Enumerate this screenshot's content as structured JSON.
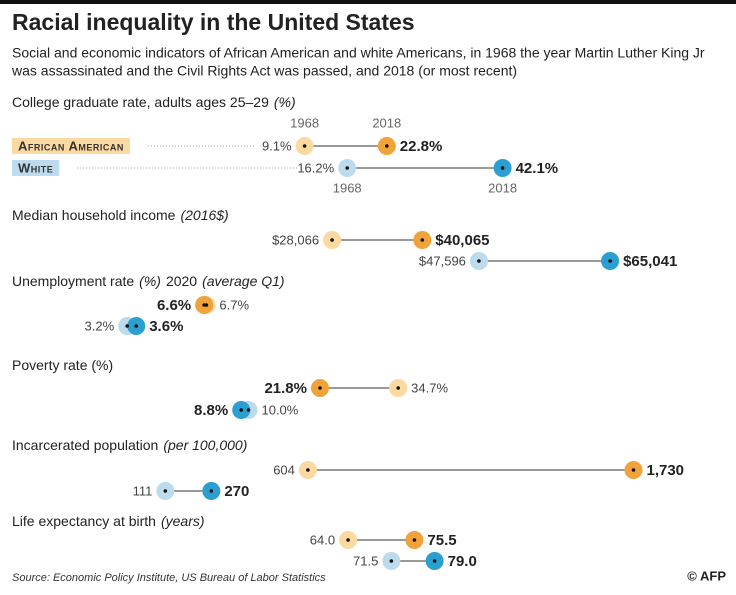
{
  "title": "Racial inequality in the United States",
  "subtitle": [
    "Social and economic indicators of African American and white Americans, in 1968 the year Martin Luther King Jr",
    "was assassinated and the Civil Rights Act was passed, and 2018 (or most recent)"
  ],
  "source": "Source: Economic Policy Institute, US Bureau of Labor Statistics",
  "credit": "© AFP",
  "chart_data": [
    {
      "type": "dumbbell",
      "title_parts": [
        {
          "text": "College graduate rate, adults ages 25–29"
        },
        {
          "text": "(%)",
          "italic": true
        }
      ],
      "categories": [
        "1968",
        "2018"
      ],
      "xlim": [
        -25,
        75
      ],
      "series": [
        {
          "name": "African American",
          "color": "#f0a33a",
          "light_color": "#fcd9a0",
          "values": [
            9.1,
            22.8
          ],
          "value_labels": [
            "9.1%",
            "22.8%"
          ]
        },
        {
          "name": "White",
          "color": "#2a9fd0",
          "light_color": "#bcdcee",
          "values": [
            16.2,
            42.1
          ],
          "value_labels": [
            "16.2%",
            "42.1%"
          ]
        }
      ]
    },
    {
      "type": "dumbbell",
      "title_parts": [
        {
          "text": "Median household income"
        },
        {
          "text": "(2016$)",
          "italic": true
        }
      ],
      "xlim": [
        -2800,
        77000
      ],
      "series": [
        {
          "color": "#f0a33a",
          "light_color": "#fcd9a0",
          "values": [
            28066,
            40065
          ],
          "value_labels": [
            "$28,066",
            "$40,065"
          ]
        },
        {
          "color": "#2a9fd0",
          "light_color": "#bcdcee",
          "values": [
            47596,
            65041
          ],
          "value_labels": [
            "$47,596",
            "$65,041"
          ]
        }
      ]
    },
    {
      "type": "dumbbell",
      "title_parts": [
        {
          "text": "Unemployment rate"
        },
        {
          "text": "(%)",
          "italic": true
        },
        {
          "text": "2020"
        },
        {
          "text": "(average Q1)",
          "italic": true
        }
      ],
      "xlim": [
        2,
        28.5
      ],
      "series": [
        {
          "color": "#f0a33a",
          "light_color": "#fcd9a0",
          "values": [
            6.7,
            6.6
          ],
          "value_labels": [
            "6.7%",
            "6.6%"
          ]
        },
        {
          "color": "#2a9fd0",
          "light_color": "#bcdcee",
          "values": [
            3.2,
            3.6
          ],
          "value_labels": [
            "3.2%",
            "3.6%"
          ]
        }
      ]
    },
    {
      "type": "dumbbell",
      "title_parts": [
        {
          "text": "Poverty rate (%)"
        }
      ],
      "xlim": [
        -14.5,
        84.5
      ],
      "series": [
        {
          "color": "#f0a33a",
          "light_color": "#fcd9a0",
          "values": [
            34.7,
            21.8
          ],
          "value_labels": [
            "34.7%",
            "21.8%"
          ]
        },
        {
          "color": "#2a9fd0",
          "light_color": "#bcdcee",
          "values": [
            10.0,
            8.8
          ],
          "value_labels": [
            "10.0%",
            "8.8%"
          ]
        }
      ]
    },
    {
      "type": "dumbbell",
      "title_parts": [
        {
          "text": "Incarcerated population"
        },
        {
          "text": "(per 100,000)",
          "italic": true
        }
      ],
      "xlim": [
        -115,
        1960
      ],
      "series": [
        {
          "color": "#f0a33a",
          "light_color": "#fcd9a0",
          "values": [
            604,
            1730
          ],
          "value_labels": [
            "604",
            "1,730"
          ]
        },
        {
          "color": "#2a9fd0",
          "light_color": "#bcdcee",
          "values": [
            111,
            270
          ]
        }
      ]
    },
    {
      "type": "dumbbell",
      "title_parts": [
        {
          "text": "Life expectancy at birth"
        },
        {
          "text": "(years)",
          "italic": true
        }
      ],
      "xlim": [
        21,
        125
      ],
      "series": [
        {
          "color": "#f0a33a",
          "light_color": "#fcd9a0",
          "values": [
            64.0,
            75.5
          ],
          "value_labels": [
            "64.0",
            "75.5"
          ]
        },
        {
          "color": "#2a9fd0",
          "light_color": "#bcdcee",
          "values": [
            71.5,
            79.0
          ],
          "value_labels": [
            "71.5",
            "79.0"
          ]
        }
      ]
    }
  ]
}
